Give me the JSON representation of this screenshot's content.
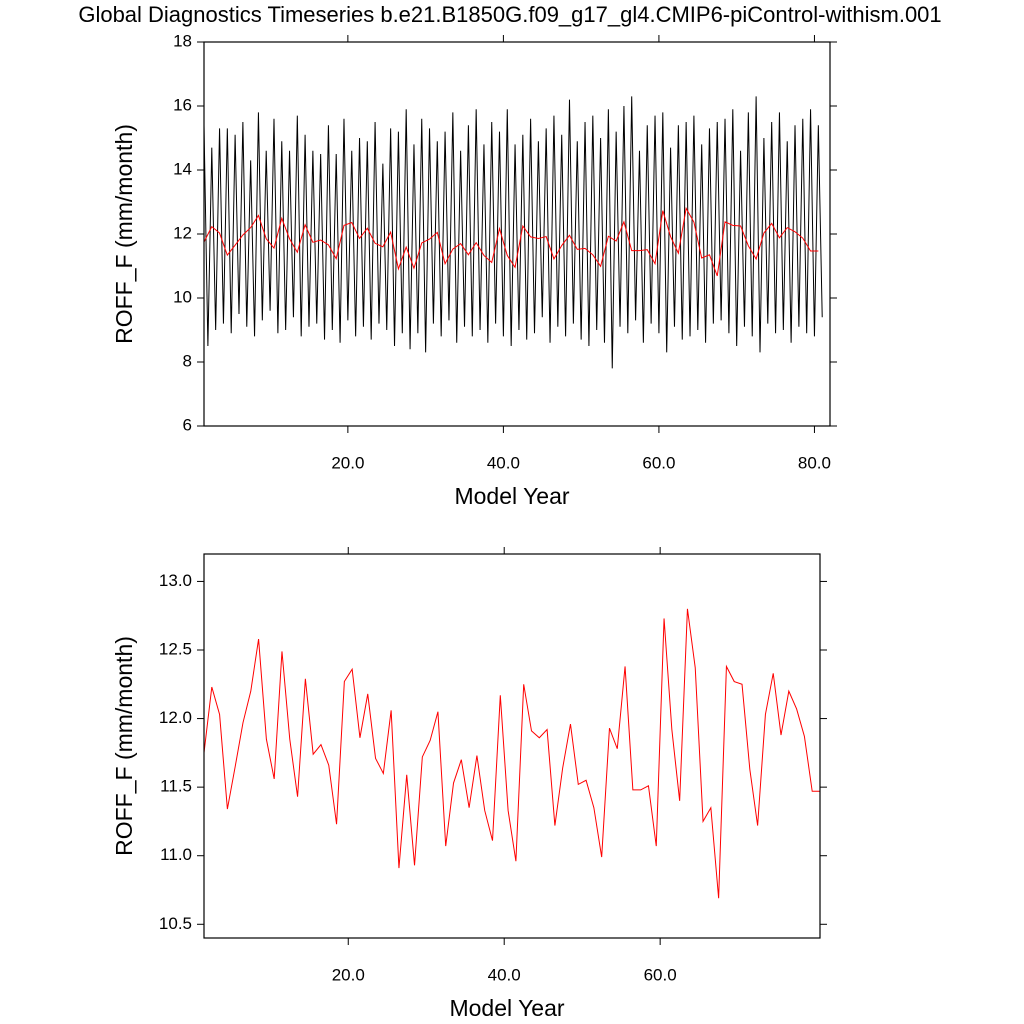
{
  "chart_data": [
    {
      "type": "line",
      "title": "Global Diagnostics Timeseries b.e21.B1850G.f09_g17_gl4.CMIP6-piControl-withism.001",
      "xlabel": "Model Year",
      "ylabel": "ROFF_F (mm/month)",
      "xlim": [
        1.5,
        82
      ],
      "ylim": [
        6,
        18
      ],
      "xticks": [
        {
          "value": 20,
          "label": "20.0"
        },
        {
          "value": 40,
          "label": "40.0"
        },
        {
          "value": 60,
          "label": "60.0"
        },
        {
          "value": 80,
          "label": "80.0"
        }
      ],
      "yticks": [
        6,
        8,
        10,
        12,
        14,
        16,
        18
      ],
      "series": [
        {
          "color": "#000000",
          "x": [
            1.5,
            2,
            2.5,
            3,
            3.5,
            4,
            4.5,
            5,
            5.5,
            6,
            6.5,
            7,
            7.5,
            8,
            8.5,
            9,
            9.5,
            10,
            10.5,
            11,
            11.5,
            12,
            12.5,
            13,
            13.5,
            14,
            14.5,
            15,
            15.5,
            16,
            16.5,
            17,
            17.5,
            18,
            18.5,
            19,
            19.5,
            20,
            20.5,
            21,
            21.5,
            22,
            22.5,
            23,
            23.5,
            24,
            24.5,
            25,
            25.5,
            26,
            26.5,
            27,
            27.5,
            28,
            28.5,
            29,
            29.5,
            30,
            30.5,
            31,
            31.5,
            32,
            32.5,
            33,
            33.5,
            34,
            34.5,
            35,
            35.5,
            36,
            36.5,
            37,
            37.5,
            38,
            38.5,
            39,
            39.5,
            40,
            40.5,
            41,
            41.5,
            42,
            42.5,
            43,
            43.5,
            44,
            44.5,
            45,
            45.5,
            46,
            46.5,
            47,
            47.5,
            48,
            48.5,
            49,
            49.5,
            50,
            50.5,
            51,
            51.5,
            52,
            52.5,
            53,
            53.5,
            54,
            54.5,
            55,
            55.5,
            56,
            56.5,
            57,
            57.5,
            58,
            58.5,
            59,
            59.5,
            60,
            60.5,
            61,
            61.5,
            62,
            62.5,
            63,
            63.5,
            64,
            64.5,
            65,
            65.5,
            66,
            66.5,
            67,
            67.5,
            68,
            68.5,
            69,
            69.5,
            70,
            70.5,
            71,
            71.5,
            72,
            72.5,
            73,
            73.5,
            74,
            74.5,
            75,
            75.5,
            76,
            76.5,
            77,
            77.5,
            78,
            78.5,
            79,
            79.5,
            80,
            80.5,
            81
          ],
          "values": [
            15.4,
            8.5,
            14.7,
            9.0,
            15.3,
            9.2,
            15.3,
            8.9,
            15.1,
            9.5,
            15.5,
            9.1,
            14.3,
            8.8,
            15.8,
            9.3,
            14.6,
            9.6,
            15.6,
            8.9,
            14.9,
            9.0,
            14.6,
            9.4,
            15.7,
            8.8,
            15.1,
            9.1,
            14.6,
            9.2,
            14.5,
            8.7,
            15.4,
            9.0,
            14.5,
            8.6,
            15.6,
            9.3,
            14.6,
            8.8,
            15.0,
            9.1,
            14.9,
            8.7,
            15.5,
            9.2,
            14.2,
            9.0,
            15.3,
            8.5,
            15.2,
            8.9,
            15.9,
            8.4,
            14.8,
            8.9,
            15.6,
            8.3,
            15.3,
            9.2,
            14.9,
            8.8,
            15.2,
            9.3,
            15.8,
            8.6,
            14.6,
            9.1,
            15.4,
            8.8,
            15.9,
            9.0,
            14.8,
            8.6,
            15.5,
            9.2,
            15.2,
            8.8,
            15.9,
            8.5,
            14.8,
            9.0,
            15.1,
            8.7,
            15.6,
            8.9,
            14.9,
            9.4,
            15.3,
            8.6,
            15.7,
            9.1,
            15.1,
            8.8,
            16.2,
            9.2,
            14.9,
            8.7,
            15.5,
            8.5,
            15.7,
            9.0,
            15.0,
            8.6,
            15.9,
            7.8,
            15.2,
            9.1,
            16.0,
            8.9,
            16.3,
            9.3,
            14.6,
            8.6,
            15.4,
            9.2,
            15.7,
            8.9,
            15.8,
            8.3,
            14.7,
            9.1,
            15.4,
            8.7,
            15.5,
            8.8,
            15.7,
            9.0,
            14.8,
            8.6,
            15.3,
            9.2,
            15.5,
            9.3,
            15.6,
            8.9,
            15.9,
            8.5,
            14.6,
            9.1,
            15.8,
            8.8,
            16.3,
            8.3,
            15.0,
            9.2,
            15.5,
            8.9,
            15.8,
            9.0,
            14.9,
            8.6,
            15.4,
            9.1,
            15.6,
            8.9,
            15.9,
            8.8,
            15.4,
            9.4
          ]
        },
        {
          "color": "#ff0000",
          "x": [
            1.5,
            2.5,
            3.5,
            4.5,
            5.5,
            6.5,
            7.5,
            8.5,
            9.5,
            10.5,
            11.5,
            12.5,
            13.5,
            14.5,
            15.5,
            16.5,
            17.5,
            18.5,
            19.5,
            20.5,
            21.5,
            22.5,
            23.5,
            24.5,
            25.5,
            26.5,
            27.5,
            28.5,
            29.5,
            30.5,
            31.5,
            32.5,
            33.5,
            34.5,
            35.5,
            36.5,
            37.5,
            38.5,
            39.5,
            40.5,
            41.5,
            42.5,
            43.5,
            44.5,
            45.5,
            46.5,
            47.5,
            48.5,
            49.5,
            50.5,
            51.5,
            52.5,
            53.5,
            54.5,
            55.5,
            56.5,
            57.5,
            58.5,
            59.5,
            60.5,
            61.5,
            62.5,
            63.5,
            64.5,
            65.5,
            66.5,
            67.5,
            68.5,
            69.5,
            70.5,
            71.5,
            72.5,
            73.5,
            74.5,
            75.5,
            76.5,
            77.5,
            78.5,
            79.5,
            80.5
          ],
          "values": [
            11.75,
            12.23,
            12.03,
            11.34,
            11.65,
            11.97,
            12.2,
            12.58,
            11.85,
            11.56,
            12.49,
            11.85,
            11.43,
            12.29,
            11.74,
            11.81,
            11.66,
            11.23,
            12.27,
            12.36,
            11.86,
            12.18,
            11.71,
            11.6,
            12.06,
            10.91,
            11.59,
            10.93,
            11.72,
            11.84,
            12.05,
            11.07,
            11.53,
            11.7,
            11.35,
            11.73,
            11.33,
            11.11,
            12.17,
            11.33,
            10.96,
            12.25,
            11.91,
            11.86,
            11.92,
            11.22,
            11.64,
            11.96,
            11.52,
            11.55,
            11.35,
            10.99,
            11.93,
            11.78,
            12.38,
            11.48,
            11.48,
            11.51,
            11.07,
            12.73,
            11.92,
            11.4,
            12.8,
            12.37,
            11.25,
            11.35,
            10.69,
            12.38,
            12.27,
            12.25,
            11.63,
            11.22,
            12.03,
            12.33,
            11.88,
            12.2,
            12.07,
            11.87,
            11.47,
            11.47
          ]
        }
      ]
    },
    {
      "type": "line",
      "xlabel": "Model Year",
      "ylabel": "ROFF_F (mm/month)",
      "xlim": [
        1.5,
        80.5
      ],
      "ylim": [
        10.4,
        13.2
      ],
      "xticks": [
        {
          "value": 20,
          "label": "20.0"
        },
        {
          "value": 40,
          "label": "40.0"
        },
        {
          "value": 60,
          "label": "60.0"
        }
      ],
      "yticks": [
        10.5,
        {
          "value": 11,
          "label": "11.0"
        },
        11.5,
        {
          "value": 12,
          "label": "12.0"
        },
        12.5,
        {
          "value": 13,
          "label": "13.0"
        }
      ],
      "series": [
        {
          "color": "#ff0000",
          "x": [
            1.5,
            2.5,
            3.5,
            4.5,
            5.5,
            6.5,
            7.5,
            8.5,
            9.5,
            10.5,
            11.5,
            12.5,
            13.5,
            14.5,
            15.5,
            16.5,
            17.5,
            18.5,
            19.5,
            20.5,
            21.5,
            22.5,
            23.5,
            24.5,
            25.5,
            26.5,
            27.5,
            28.5,
            29.5,
            30.5,
            31.5,
            32.5,
            33.5,
            34.5,
            35.5,
            36.5,
            37.5,
            38.5,
            39.5,
            40.5,
            41.5,
            42.5,
            43.5,
            44.5,
            45.5,
            46.5,
            47.5,
            48.5,
            49.5,
            50.5,
            51.5,
            52.5,
            53.5,
            54.5,
            55.5,
            56.5,
            57.5,
            58.5,
            59.5,
            60.5,
            61.5,
            62.5,
            63.5,
            64.5,
            65.5,
            66.5,
            67.5,
            68.5,
            69.5,
            70.5,
            71.5,
            72.5,
            73.5,
            74.5,
            75.5,
            76.5,
            77.5,
            78.5,
            79.5,
            80.5
          ],
          "values": [
            11.75,
            12.23,
            12.03,
            11.34,
            11.65,
            11.97,
            12.2,
            12.58,
            11.85,
            11.56,
            12.49,
            11.85,
            11.43,
            12.29,
            11.74,
            11.81,
            11.66,
            11.23,
            12.27,
            12.36,
            11.86,
            12.18,
            11.71,
            11.6,
            12.06,
            10.91,
            11.59,
            10.93,
            11.72,
            11.84,
            12.05,
            11.07,
            11.53,
            11.7,
            11.35,
            11.73,
            11.33,
            11.11,
            12.17,
            11.33,
            10.96,
            12.25,
            11.91,
            11.86,
            11.92,
            11.22,
            11.64,
            11.96,
            11.52,
            11.55,
            11.35,
            10.99,
            11.93,
            11.78,
            12.38,
            11.48,
            11.48,
            11.51,
            11.07,
            12.73,
            11.92,
            11.4,
            12.8,
            12.37,
            11.25,
            11.35,
            10.69,
            12.38,
            12.27,
            12.25,
            11.63,
            11.22,
            12.03,
            12.33,
            11.88,
            12.2,
            12.07,
            11.87,
            11.47,
            11.47
          ]
        }
      ]
    }
  ]
}
